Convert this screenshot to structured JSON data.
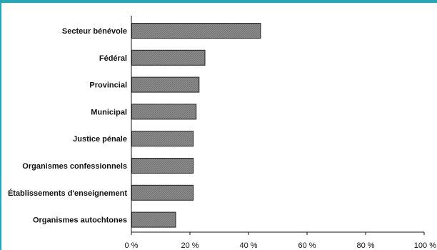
{
  "chart_data": {
    "type": "bar",
    "orientation": "horizontal",
    "categories": [
      "Secteur bénévole",
      "Fédéral",
      "Provincial",
      "Municipal",
      "Justice pénale",
      "Organismes confessionnels",
      "Établissements d'enseignement",
      "Organismes autochtones"
    ],
    "values": [
      44,
      25,
      23,
      22,
      21,
      21,
      21,
      15
    ],
    "xlim": [
      0,
      100
    ],
    "xticks": [
      0,
      20,
      40,
      60,
      80,
      100
    ],
    "xtick_labels": [
      "0 %",
      "20 %",
      "40 %",
      "60 %",
      "80 %",
      "100 %"
    ],
    "grid": false,
    "colors": {
      "bar_fill": "#8c8c8c",
      "bar_stroke": "#222222",
      "accent": "#2aa5b5"
    }
  }
}
